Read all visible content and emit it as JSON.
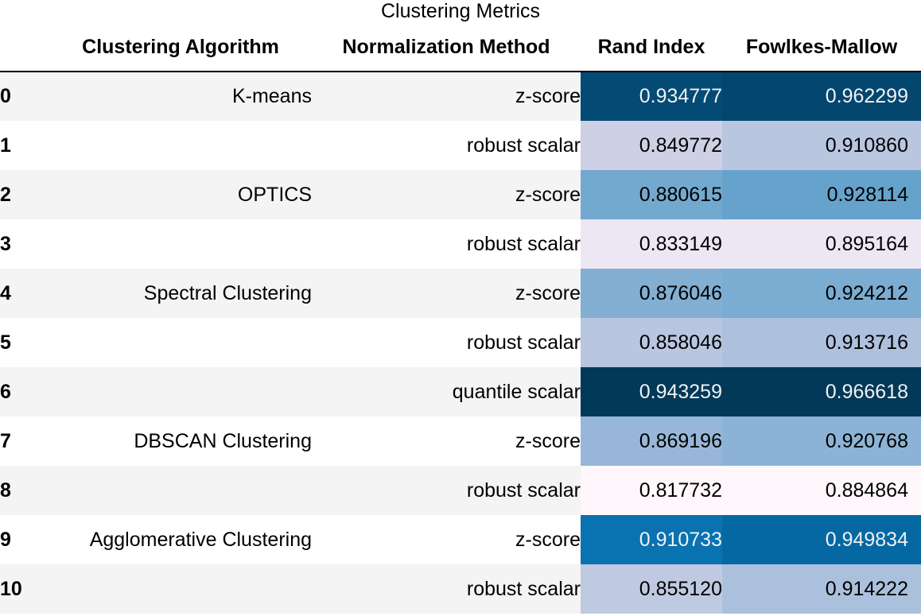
{
  "caption": "Clustering Metrics",
  "columns": {
    "index": "",
    "algorithm": "Clustering Algorithm",
    "normalization": "Normalization Method",
    "rand": "Rand Index",
    "fowlkes": "Fowlkes-Mallow"
  },
  "rows": [
    {
      "index": "0",
      "algorithm": "K-means",
      "normalization": "z-score",
      "rand": "0.934777",
      "fowlkes": "0.962299"
    },
    {
      "index": "1",
      "algorithm": "",
      "normalization": "robust scalar",
      "rand": "0.849772",
      "fowlkes": "0.910860"
    },
    {
      "index": "2",
      "algorithm": "OPTICS",
      "normalization": "z-score",
      "rand": "0.880615",
      "fowlkes": "0.928114"
    },
    {
      "index": "3",
      "algorithm": "",
      "normalization": "robust scalar",
      "rand": "0.833149",
      "fowlkes": "0.895164"
    },
    {
      "index": "4",
      "algorithm": "Spectral Clustering",
      "normalization": "z-score",
      "rand": "0.876046",
      "fowlkes": "0.924212"
    },
    {
      "index": "5",
      "algorithm": "",
      "normalization": "robust scalar",
      "rand": "0.858046",
      "fowlkes": "0.913716"
    },
    {
      "index": "6",
      "algorithm": "",
      "normalization": "quantile scalar",
      "rand": "0.943259",
      "fowlkes": "0.966618"
    },
    {
      "index": "7",
      "algorithm": "DBSCAN Clustering",
      "normalization": "z-score",
      "rand": "0.869196",
      "fowlkes": "0.920768"
    },
    {
      "index": "8",
      "algorithm": "",
      "normalization": "robust scalar",
      "rand": "0.817732",
      "fowlkes": "0.884864"
    },
    {
      "index": "9",
      "algorithm": "Agglomerative Clustering",
      "normalization": "z-score",
      "rand": "0.910733",
      "fowlkes": "0.949834"
    },
    {
      "index": "10",
      "algorithm": "",
      "normalization": "robust scalar",
      "rand": "0.855120",
      "fowlkes": "0.914222"
    }
  ],
  "gradient": {
    "palette": [
      "#fff7fb",
      "#ece7f2",
      "#d0d1e6",
      "#a6bddb",
      "#74a9cf",
      "#3690c0",
      "#0570b0",
      "#045a8d",
      "#023858"
    ],
    "text_dark": "#000000",
    "text_light": "#f1f1f1"
  },
  "colors": {
    "row_odd": "#f4f4f4",
    "row_even": "#ffffff",
    "header_rule": "#000000"
  }
}
